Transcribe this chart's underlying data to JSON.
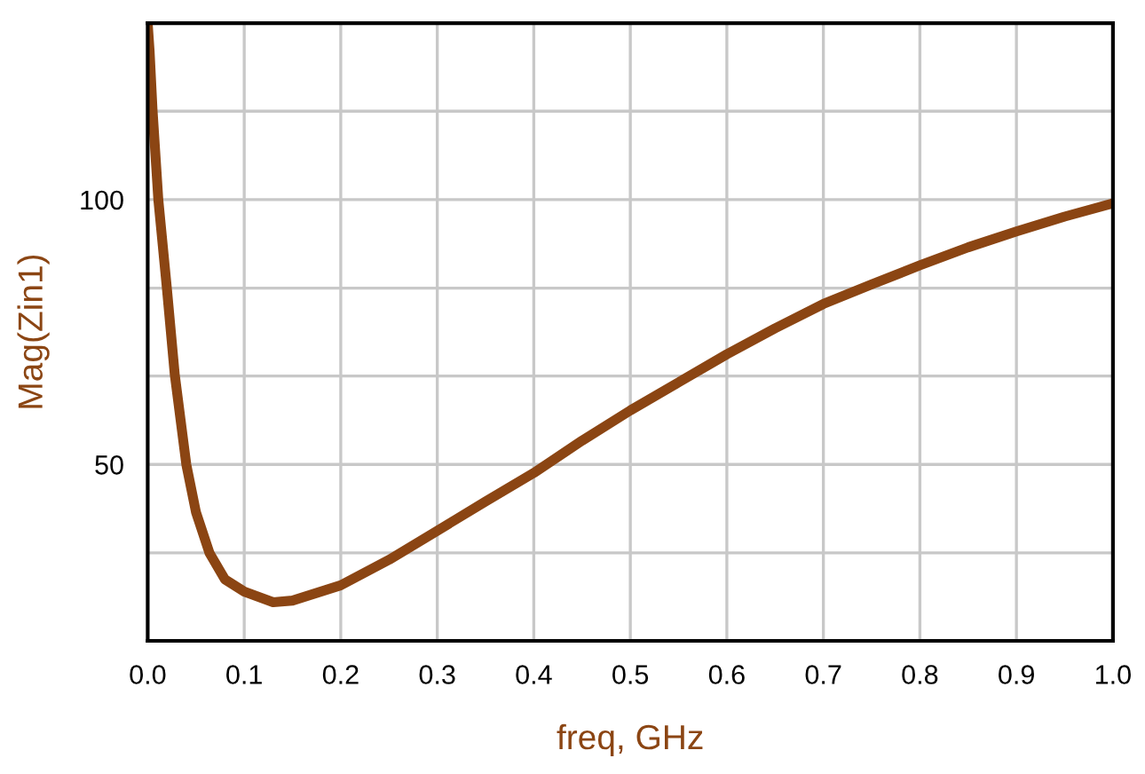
{
  "chart_data": {
    "type": "line",
    "xlabel": "freq, GHz",
    "ylabel": "Mag(Zin1)",
    "xlim": [
      0,
      1
    ],
    "xticks": [
      {
        "value": 0,
        "label": "0.0"
      },
      {
        "value": 0.1,
        "label": "0.1"
      },
      {
        "value": 0.2,
        "label": "0.2"
      },
      {
        "value": 0.3,
        "label": "0.3"
      },
      {
        "value": 0.4,
        "label": "0.4"
      },
      {
        "value": 0.5,
        "label": "0.5"
      },
      {
        "value": 0.6,
        "label": "0.6"
      },
      {
        "value": 0.7,
        "label": "0.7"
      },
      {
        "value": 0.8,
        "label": "0.8"
      },
      {
        "value": 0.9,
        "label": "0.9"
      },
      {
        "value": 1,
        "label": "1.0"
      }
    ],
    "ylim": [
      16.7,
      133.3
    ],
    "yticks": [
      {
        "value": 16.7,
        "label": null
      },
      {
        "value": 33.3,
        "label": null
      },
      50,
      {
        "value": 66.7,
        "label": null
      },
      {
        "value": 83.3,
        "label": null
      },
      100,
      {
        "value": 116.7,
        "label": null
      },
      {
        "value": 133.3,
        "label": null
      }
    ],
    "grid": true,
    "marker": "none",
    "line_style": "solid",
    "series": [
      {
        "color": "#8b4513",
        "x": [
          0,
          0.002,
          0.005,
          0.011,
          0.02,
          0.028,
          0.04,
          0.05,
          0.064,
          0.08,
          0.1,
          0.13,
          0.15,
          0.2,
          0.25,
          0.3,
          0.35,
          0.4,
          0.45,
          0.5,
          0.55,
          0.6,
          0.65,
          0.7,
          0.75,
          0.8,
          0.85,
          0.9,
          0.95,
          1.0
        ],
        "values": [
          133.3,
          128,
          117,
          100,
          83,
          67,
          50,
          41,
          33.3,
          28.3,
          26,
          24,
          24.3,
          27.2,
          32,
          37.5,
          43,
          48.4,
          54.5,
          60.2,
          65.5,
          70.8,
          75.7,
          80.3,
          84,
          87.6,
          91,
          94,
          96.8,
          99.3
        ]
      }
    ]
  }
}
